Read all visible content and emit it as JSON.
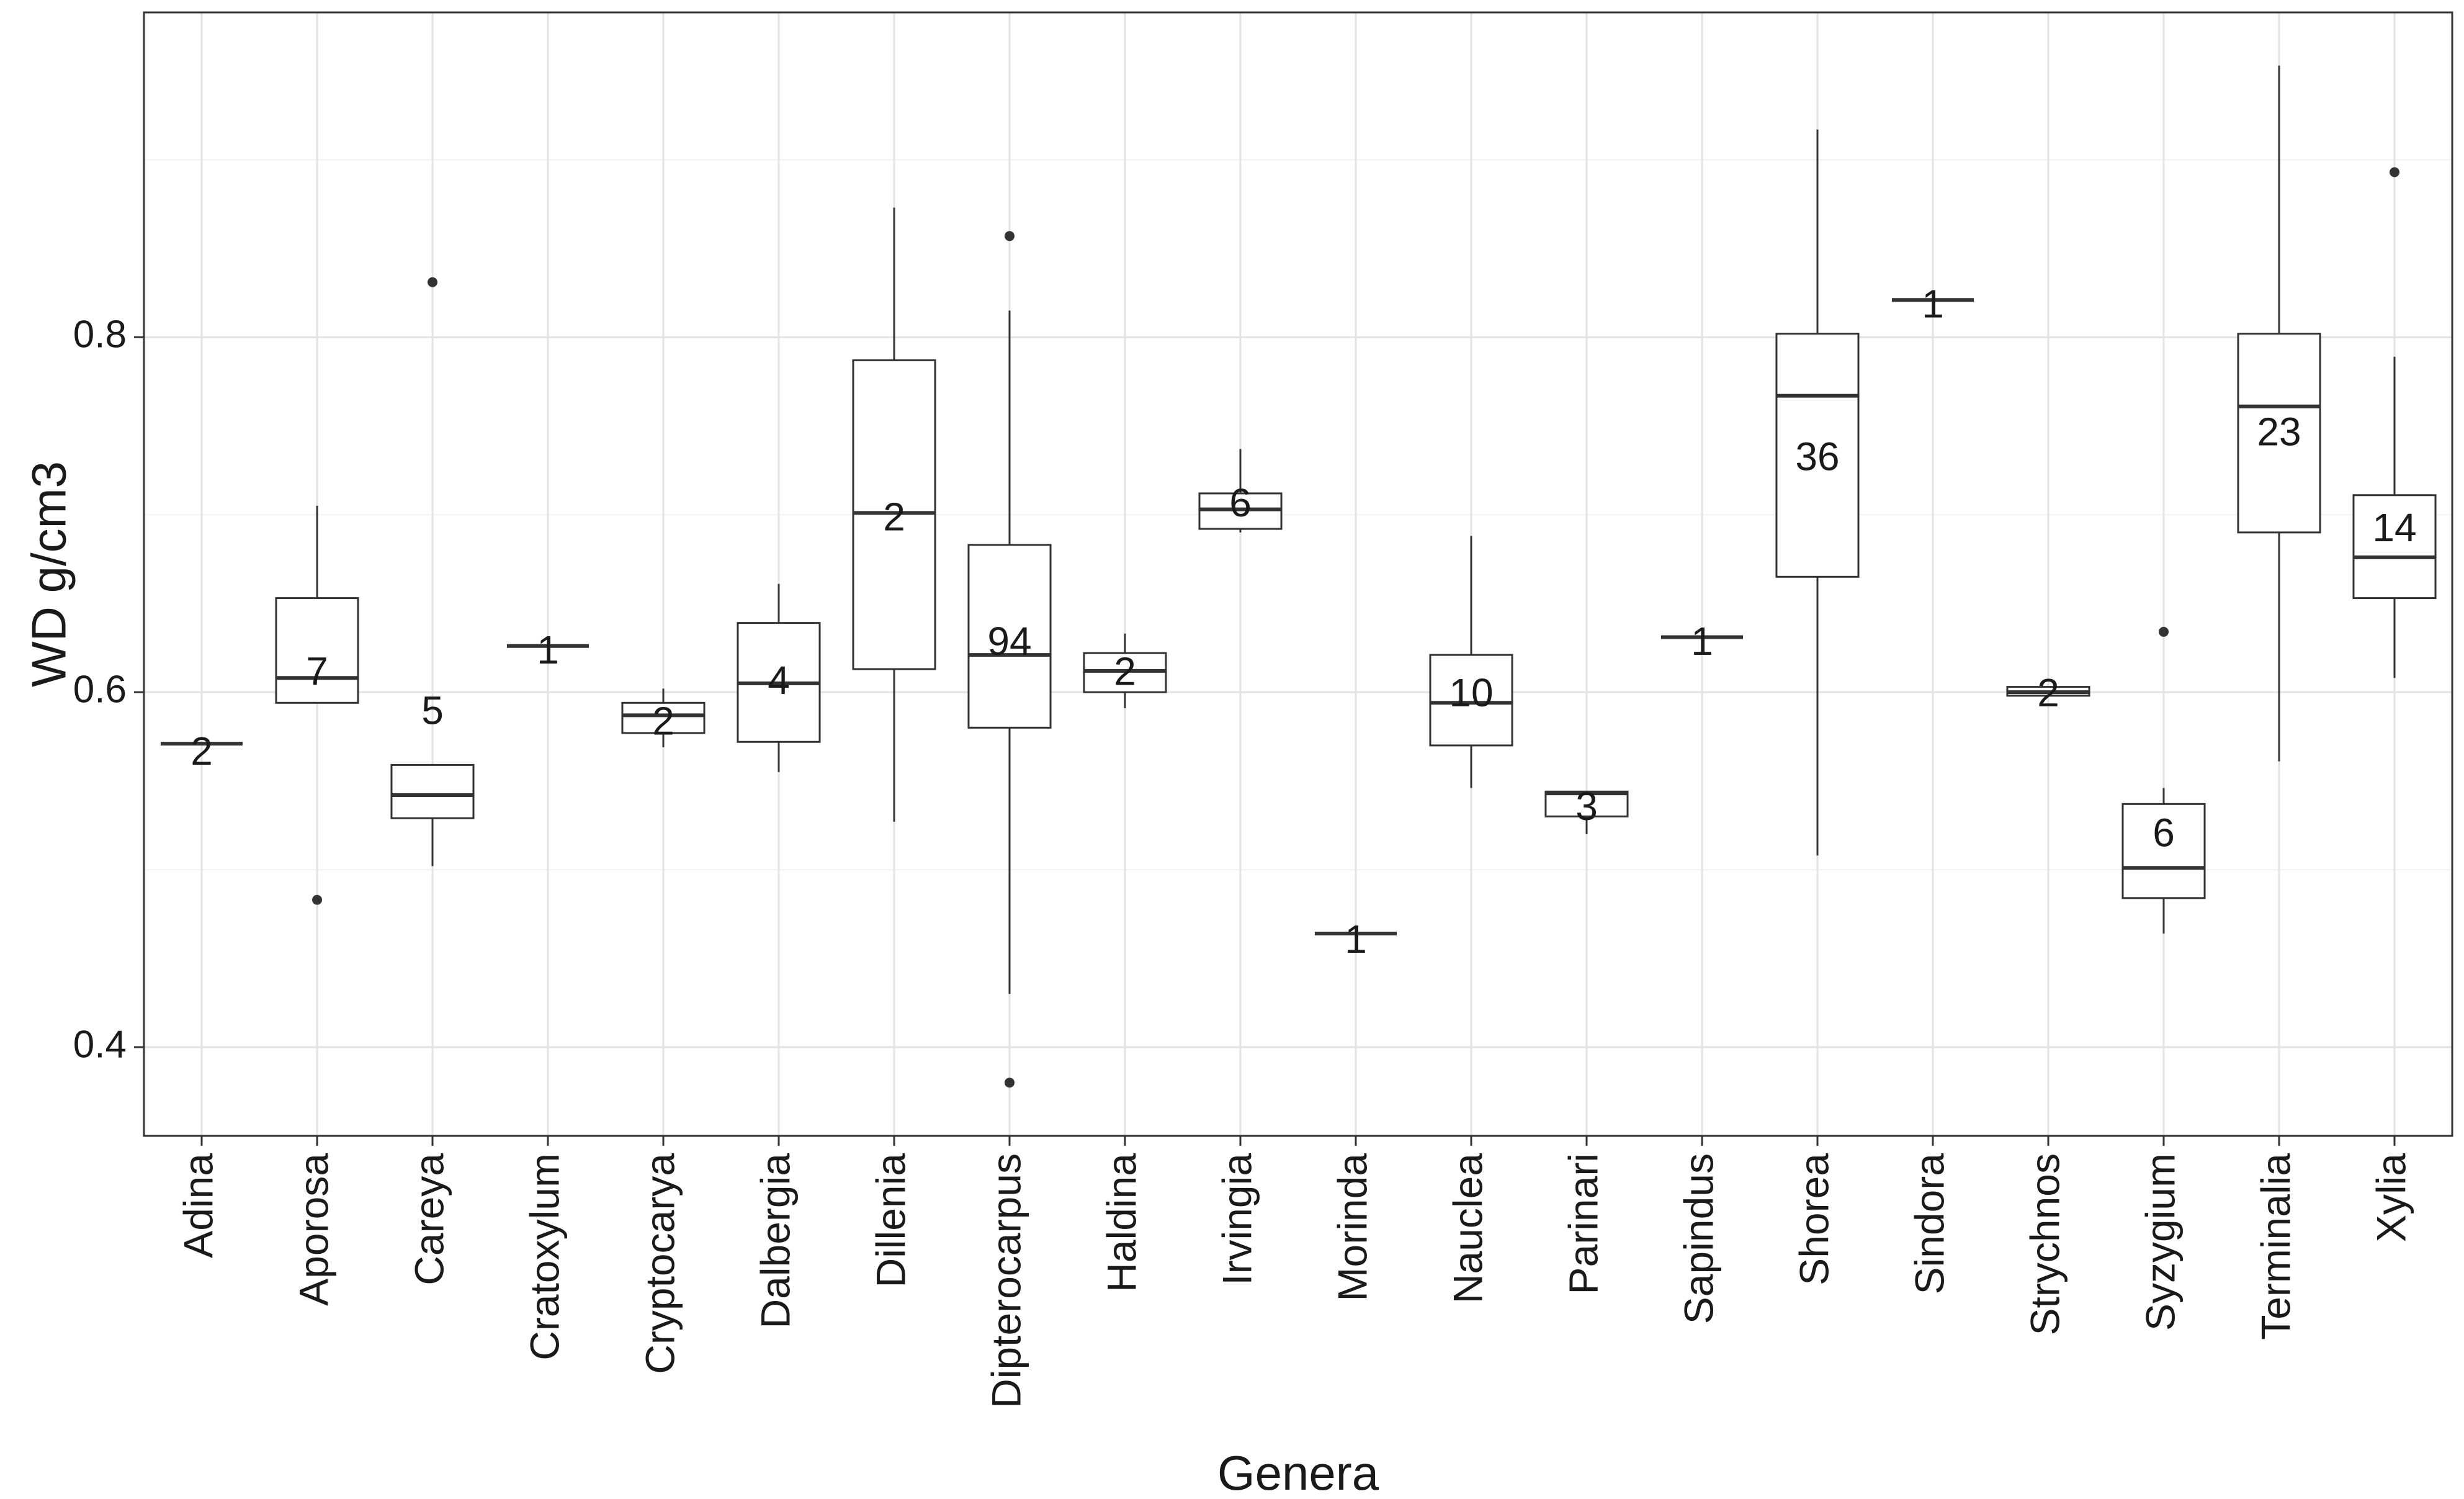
{
  "chart_data": {
    "type": "boxplot",
    "xlabel": "Genera",
    "ylabel": "WD g/cm3",
    "ylim": [
      0.35,
      0.983
    ],
    "yticks": [
      0.4,
      0.6,
      0.8
    ],
    "ytick_labels": [
      "0.4",
      "0.6",
      "0.8"
    ],
    "grid": true,
    "categories": [
      "Adina",
      "Aporosa",
      "Careya",
      "Cratoxylum",
      "Cryptocarya",
      "Dalbergia",
      "Dillenia",
      "Dipterocarpus",
      "Haldina",
      "Irvingia",
      "Morinda",
      "Nauclea",
      "Parinari",
      "Sapindus",
      "Shorea",
      "Sindora",
      "Strychnos",
      "Syzygium",
      "Terminalia",
      "Xylia"
    ],
    "boxes": [
      {
        "min": 0.571,
        "q1": 0.571,
        "median": 0.571,
        "q3": 0.571,
        "max": 0.571,
        "outliers": [],
        "n_label": "2",
        "label_y": 0.565
      },
      {
        "min": 0.594,
        "q1": 0.594,
        "median": 0.608,
        "q3": 0.653,
        "max": 0.705,
        "outliers": [
          0.483
        ],
        "n_label": "7",
        "label_y": 0.61
      },
      {
        "min": 0.502,
        "q1": 0.529,
        "median": 0.542,
        "q3": 0.559,
        "max": 0.559,
        "outliers": [
          0.831
        ],
        "n_label": "5",
        "label_y": 0.588
      },
      {
        "min": 0.626,
        "q1": 0.626,
        "median": 0.626,
        "q3": 0.626,
        "max": 0.626,
        "outliers": [],
        "n_label": "1",
        "label_y": 0.622
      },
      {
        "min": 0.569,
        "q1": 0.577,
        "median": 0.587,
        "q3": 0.594,
        "max": 0.602,
        "outliers": [],
        "n_label": "2",
        "label_y": 0.582
      },
      {
        "min": 0.555,
        "q1": 0.572,
        "median": 0.605,
        "q3": 0.639,
        "max": 0.661,
        "outliers": [],
        "n_label": "4",
        "label_y": 0.605
      },
      {
        "min": 0.527,
        "q1": 0.613,
        "median": 0.701,
        "q3": 0.787,
        "max": 0.873,
        "outliers": [],
        "n_label": "2",
        "label_y": 0.697
      },
      {
        "min": 0.43,
        "q1": 0.58,
        "median": 0.621,
        "q3": 0.683,
        "max": 0.815,
        "outliers": [
          0.857,
          0.38
        ],
        "n_label": "94",
        "label_y": 0.627
      },
      {
        "min": 0.591,
        "q1": 0.6,
        "median": 0.612,
        "q3": 0.622,
        "max": 0.633,
        "outliers": [],
        "n_label": "2",
        "label_y": 0.61
      },
      {
        "min": 0.69,
        "q1": 0.692,
        "median": 0.703,
        "q3": 0.712,
        "max": 0.737,
        "outliers": [],
        "n_label": "6",
        "label_y": 0.705
      },
      {
        "min": 0.464,
        "q1": 0.464,
        "median": 0.464,
        "q3": 0.464,
        "max": 0.464,
        "outliers": [],
        "n_label": "1",
        "label_y": 0.459
      },
      {
        "min": 0.546,
        "q1": 0.57,
        "median": 0.594,
        "q3": 0.621,
        "max": 0.688,
        "outliers": [],
        "n_label": "10",
        "label_y": 0.598
      },
      {
        "min": 0.52,
        "q1": 0.53,
        "median": 0.543,
        "q3": 0.544,
        "max": 0.544,
        "outliers": [],
        "n_label": "3",
        "label_y": 0.534
      },
      {
        "min": 0.631,
        "q1": 0.631,
        "median": 0.631,
        "q3": 0.631,
        "max": 0.631,
        "outliers": [],
        "n_label": "1",
        "label_y": 0.627
      },
      {
        "min": 0.508,
        "q1": 0.665,
        "median": 0.767,
        "q3": 0.802,
        "max": 0.917,
        "outliers": [],
        "n_label": "36",
        "label_y": 0.731
      },
      {
        "min": 0.821,
        "q1": 0.821,
        "median": 0.821,
        "q3": 0.821,
        "max": 0.821,
        "outliers": [],
        "n_label": "1",
        "label_y": 0.817
      },
      {
        "min": 0.598,
        "q1": 0.598,
        "median": 0.6,
        "q3": 0.603,
        "max": 0.603,
        "outliers": [],
        "n_label": "2",
        "label_y": 0.598
      },
      {
        "min": 0.464,
        "q1": 0.484,
        "median": 0.501,
        "q3": 0.537,
        "max": 0.546,
        "outliers": [
          0.634
        ],
        "n_label": "6",
        "label_y": 0.519
      },
      {
        "min": 0.561,
        "q1": 0.69,
        "median": 0.761,
        "q3": 0.802,
        "max": 0.953,
        "outliers": [],
        "n_label": "23",
        "label_y": 0.745
      },
      {
        "min": 0.608,
        "q1": 0.653,
        "median": 0.676,
        "q3": 0.711,
        "max": 0.789,
        "outliers": [
          0.893
        ],
        "n_label": "14",
        "label_y": 0.691
      }
    ]
  }
}
